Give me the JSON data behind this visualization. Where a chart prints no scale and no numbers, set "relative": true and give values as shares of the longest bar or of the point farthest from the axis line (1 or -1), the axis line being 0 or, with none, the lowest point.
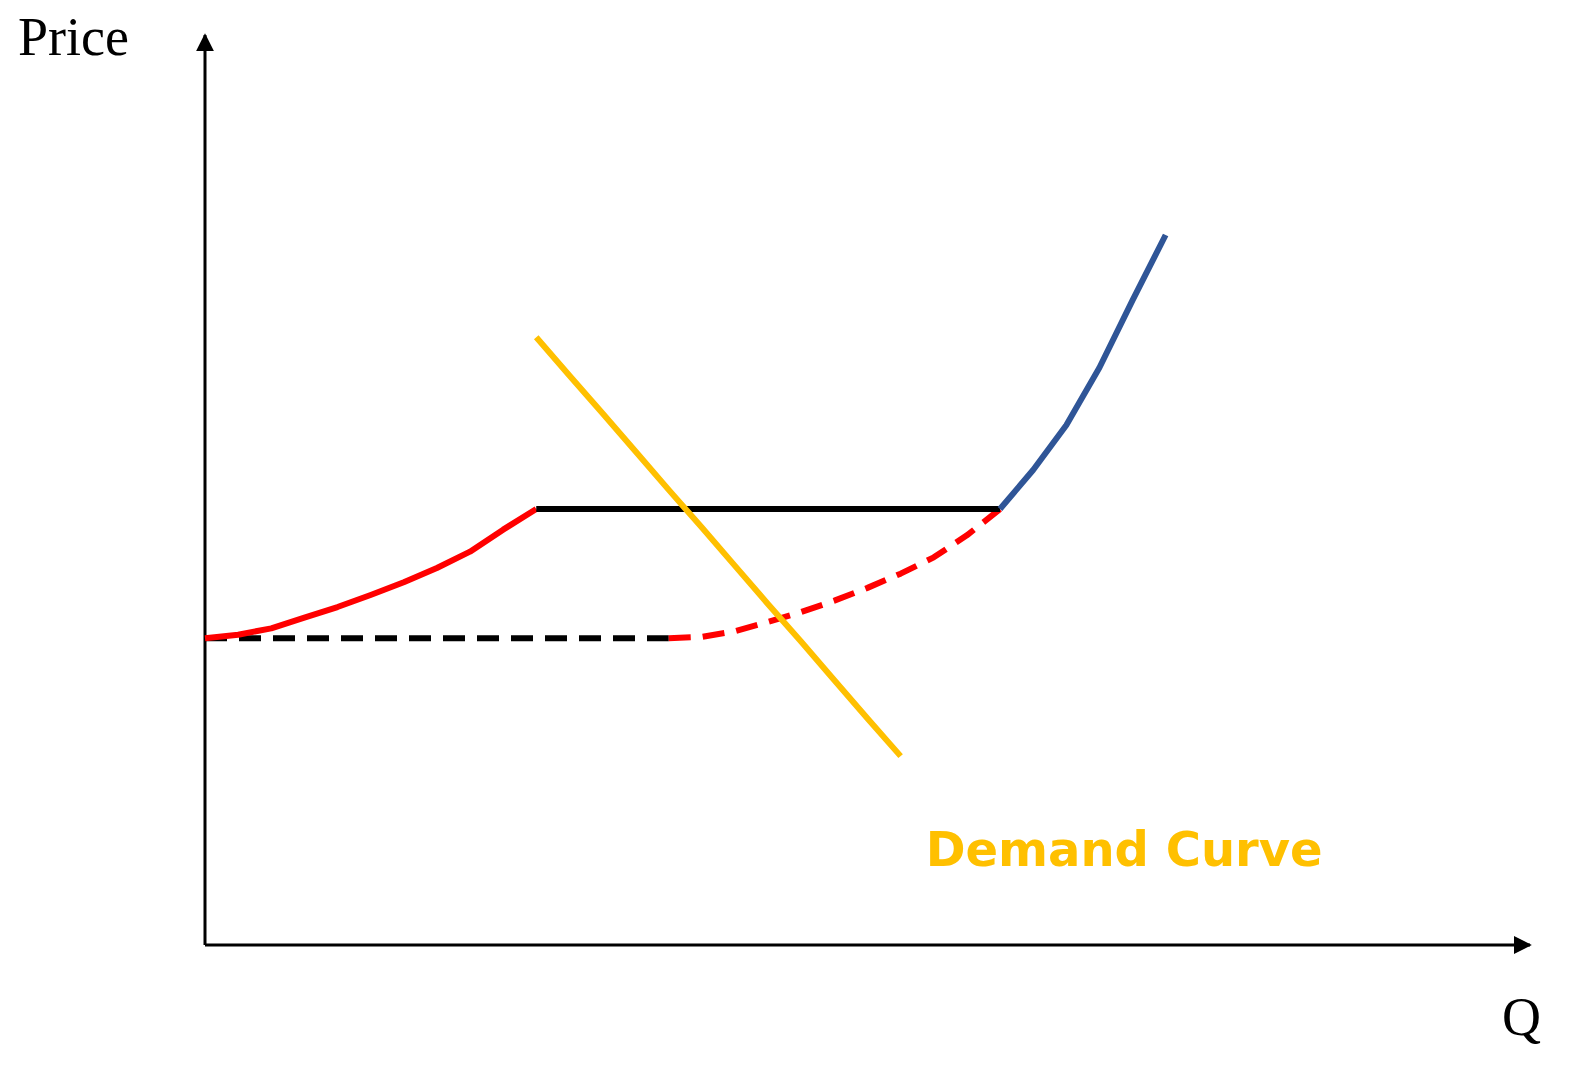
{
  "chart_data": {
    "type": "line",
    "relative": true,
    "xlabel": "Q",
    "ylabel": "Price",
    "legend": false,
    "marker": "none",
    "categories": [
      null,
      null,
      null,
      null,
      null,
      null,
      null,
      null,
      null,
      null,
      null,
      null,
      null,
      null,
      null,
      null,
      null,
      null,
      null,
      null,
      null,
      null,
      null,
      null,
      null,
      null,
      null,
      null,
      null,
      null,
      null,
      null,
      null,
      null,
      null,
      null,
      null,
      null,
      null,
      null,
      null
    ],
    "series": [
      {
        "color": "#ff0000",
        "values": [
          0.432,
          0.437,
          0.446,
          0.461,
          0.476,
          0.493,
          0.511,
          0.531,
          0.554,
          0.585,
          0.614,
          null,
          null,
          null,
          null,
          null,
          null,
          null,
          null,
          null,
          null,
          null,
          null,
          null,
          null,
          null,
          null,
          null,
          null,
          null,
          null,
          null,
          null,
          null,
          null,
          null,
          null,
          null,
          null,
          null,
          null
        ]
      },
      {
        "color": "#000000",
        "values": [
          null,
          null,
          null,
          null,
          null,
          null,
          null,
          null,
          null,
          null,
          0.614,
          0.614,
          0.614,
          0.614,
          0.614,
          0.614,
          0.614,
          0.614,
          0.614,
          0.614,
          0.614,
          0.614,
          0.614,
          0.614,
          0.614,
          null,
          null,
          null,
          null,
          null,
          null,
          null,
          null,
          null,
          null,
          null,
          null,
          null,
          null,
          null,
          null
        ]
      },
      {
        "color": "#000000",
        "line_style": "dashed",
        "values": [
          0.432,
          0.432,
          0.432,
          0.432,
          0.432,
          0.432,
          0.432,
          0.432,
          0.432,
          0.432,
          0.432,
          0.432,
          0.432,
          0.432,
          0.432,
          null,
          null,
          null,
          null,
          null,
          null,
          null,
          null,
          null,
          null,
          null,
          null,
          null,
          null,
          null,
          null,
          null,
          null,
          null,
          null,
          null,
          null,
          null,
          null,
          null,
          null
        ]
      },
      {
        "color": "#ff0000",
        "line_style": "dashed",
        "values": [
          null,
          null,
          null,
          null,
          null,
          null,
          null,
          null,
          null,
          null,
          null,
          null,
          null,
          null,
          0.432,
          0.434,
          0.442,
          0.455,
          0.469,
          0.485,
          0.503,
          0.523,
          0.546,
          0.577,
          0.614,
          null,
          null,
          null,
          null,
          null,
          null,
          null,
          null,
          null,
          null,
          null,
          null,
          null,
          null,
          null,
          null
        ]
      },
      {
        "color": "#2f5597",
        "values": [
          null,
          null,
          null,
          null,
          null,
          null,
          null,
          null,
          null,
          null,
          null,
          null,
          null,
          null,
          null,
          null,
          null,
          null,
          null,
          null,
          null,
          null,
          null,
          null,
          0.614,
          0.669,
          0.732,
          0.813,
          0.908,
          1,
          null,
          null,
          null,
          null,
          null,
          null,
          null,
          null,
          null,
          null,
          null
        ]
      },
      {
        "name": "Demand Curve",
        "color": "#ffc000",
        "values": [
          null,
          null,
          null,
          null,
          null,
          null,
          null,
          null,
          null,
          null,
          0.856,
          0.802,
          0.749,
          0.695,
          0.641,
          0.588,
          0.534,
          0.48,
          0.427,
          0.373,
          0.319,
          0.266,
          null,
          null,
          null,
          null,
          null,
          null,
          null,
          null,
          null,
          null,
          null,
          null,
          null,
          null,
          null,
          null,
          null,
          null,
          null
        ]
      }
    ]
  }
}
